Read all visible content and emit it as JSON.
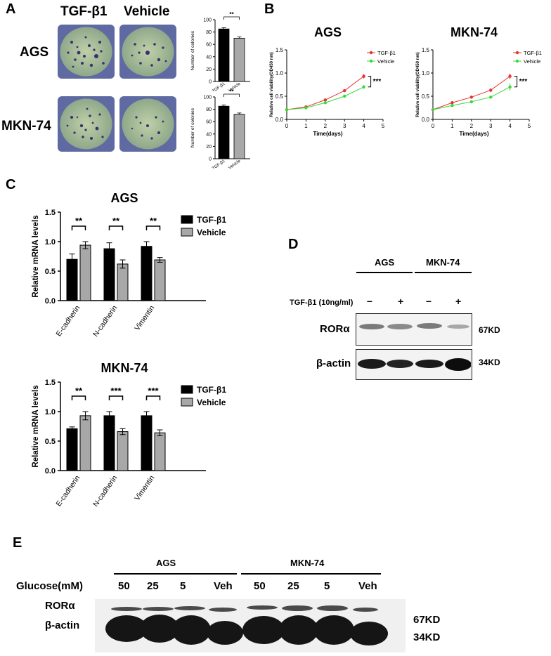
{
  "panels": {
    "A": "A",
    "B": "B",
    "C": "C",
    "D": "D",
    "E": "E"
  },
  "panelA": {
    "conditions": [
      "TGF-β1",
      "Vehicle"
    ],
    "cell_lines": [
      "AGS",
      "MKN-74"
    ],
    "bar_ylabel": "Number of colonies",
    "significance": "**"
  },
  "panelB": {
    "significance": "***",
    "xlabel": "Time(days)",
    "ylabel": "Relative cell viability(OD450 nm)"
  },
  "panelC": {
    "ylabel": "Relative mRNA levels"
  },
  "panelD": {
    "cell_lines": [
      "AGS",
      "MKN-74"
    ],
    "treatment_label": "TGF-β1 (10ng/ml)",
    "lane_signs": [
      "–",
      "+",
      "–",
      "+"
    ],
    "proteins": [
      "RORα",
      "β-actin"
    ],
    "sizes": [
      "67KD",
      "34KD"
    ]
  },
  "panelE": {
    "cell_lines": [
      "AGS",
      "MKN-74"
    ],
    "row_label": "Glucose(mM)",
    "lanes": [
      "50",
      "25",
      "5",
      "Veh",
      "50",
      "25",
      "5",
      "Veh"
    ],
    "proteins": [
      "RORα",
      "β-actin"
    ],
    "sizes": [
      "67KD",
      "34KD"
    ]
  },
  "chart_data": [
    {
      "type": "bar",
      "id": "A-AGS",
      "categories": [
        "TGF-β1",
        "Vehicle"
      ],
      "values": [
        85,
        70
      ],
      "errors": [
        2,
        2
      ],
      "ylabel": "Number of colonies",
      "ylim": [
        0,
        100
      ],
      "yticks": [
        0,
        20,
        40,
        60,
        80,
        100
      ],
      "significance": "**",
      "colors": [
        "#000000",
        "#a8a8a8"
      ]
    },
    {
      "type": "bar",
      "id": "A-MKN-74",
      "categories": [
        "TGF-β1",
        "Vehicle"
      ],
      "values": [
        85,
        72
      ],
      "errors": [
        2,
        2
      ],
      "ylabel": "Number of colonies",
      "ylim": [
        0,
        100
      ],
      "yticks": [
        0,
        20,
        40,
        60,
        80,
        100
      ],
      "significance": "**",
      "colors": [
        "#000000",
        "#a8a8a8"
      ]
    },
    {
      "type": "line",
      "id": "B-AGS",
      "title": "AGS",
      "xlabel": "Time(days)",
      "ylabel": "Relative cell viability(OD450 nm)",
      "x": [
        0,
        1,
        2,
        3,
        4
      ],
      "xlim": [
        0,
        5
      ],
      "ylim": [
        0,
        1.5
      ],
      "xticks": [
        0,
        1,
        2,
        3,
        4,
        5
      ],
      "yticks": [
        0.0,
        0.5,
        1.0,
        1.5
      ],
      "series": [
        {
          "name": "TGF-β1",
          "color": "#e8322e",
          "values": [
            0.21,
            0.27,
            0.42,
            0.62,
            0.93
          ],
          "errors": [
            0.01,
            0.02,
            0.02,
            0.03,
            0.05
          ]
        },
        {
          "name": "Vehicle",
          "color": "#3bd83b",
          "values": [
            0.21,
            0.25,
            0.36,
            0.5,
            0.7
          ],
          "errors": [
            0.01,
            0.02,
            0.02,
            0.03,
            0.04
          ]
        }
      ],
      "significance": "***",
      "legend": "top-right"
    },
    {
      "type": "line",
      "id": "B-MKN-74",
      "title": "MKN-74",
      "xlabel": "Time(days)",
      "ylabel": "Relative cell viability(OD450 nm)",
      "x": [
        0,
        1,
        2,
        3,
        4
      ],
      "xlim": [
        0,
        5
      ],
      "ylim": [
        0,
        1.5
      ],
      "xticks": [
        0,
        1,
        2,
        3,
        4,
        5
      ],
      "yticks": [
        0.0,
        0.5,
        1.0,
        1.5
      ],
      "series": [
        {
          "name": "TGF-β1",
          "color": "#e8322e",
          "values": [
            0.21,
            0.36,
            0.48,
            0.63,
            0.93
          ],
          "errors": [
            0.01,
            0.02,
            0.03,
            0.04,
            0.06
          ]
        },
        {
          "name": "Vehicle",
          "color": "#3bd83b",
          "values": [
            0.21,
            0.3,
            0.38,
            0.48,
            0.7
          ],
          "errors": [
            0.01,
            0.02,
            0.03,
            0.03,
            0.08
          ]
        }
      ],
      "significance": "***",
      "legend": "top-right"
    },
    {
      "type": "bar",
      "id": "C-AGS",
      "title": "AGS",
      "ylabel": "Relative mRNA levels",
      "categories": [
        "E-cadherin",
        "N-cadherin",
        "Vimentin"
      ],
      "ylim": [
        0,
        1.5
      ],
      "yticks": [
        0.0,
        0.5,
        1.0,
        1.5
      ],
      "series": [
        {
          "name": "TGF-β1",
          "color": "#000000",
          "values": [
            0.7,
            0.88,
            0.92
          ],
          "errors": [
            0.09,
            0.1,
            0.08
          ]
        },
        {
          "name": "Vehicle",
          "color": "#a8a8a8",
          "values": [
            0.94,
            0.62,
            0.69
          ],
          "errors": [
            0.06,
            0.07,
            0.04
          ]
        }
      ],
      "significance": [
        "**",
        "**",
        "**"
      ],
      "legend": "top-right"
    },
    {
      "type": "bar",
      "id": "C-MKN-74",
      "title": "MKN-74",
      "ylabel": "Relative mRNA levels",
      "categories": [
        "E-cadherin",
        "N-cadherin",
        "Vimentin"
      ],
      "ylim": [
        0,
        1.5
      ],
      "yticks": [
        0.0,
        0.5,
        1.0,
        1.5
      ],
      "series": [
        {
          "name": "TGF-β1",
          "color": "#000000",
          "values": [
            0.71,
            0.93,
            0.93
          ],
          "errors": [
            0.03,
            0.07,
            0.07
          ]
        },
        {
          "name": "Vehicle",
          "color": "#a8a8a8",
          "values": [
            0.93,
            0.66,
            0.64
          ],
          "errors": [
            0.07,
            0.05,
            0.05
          ]
        }
      ],
      "significance": [
        "**",
        "***",
        "***"
      ],
      "legend": "top-right"
    }
  ]
}
